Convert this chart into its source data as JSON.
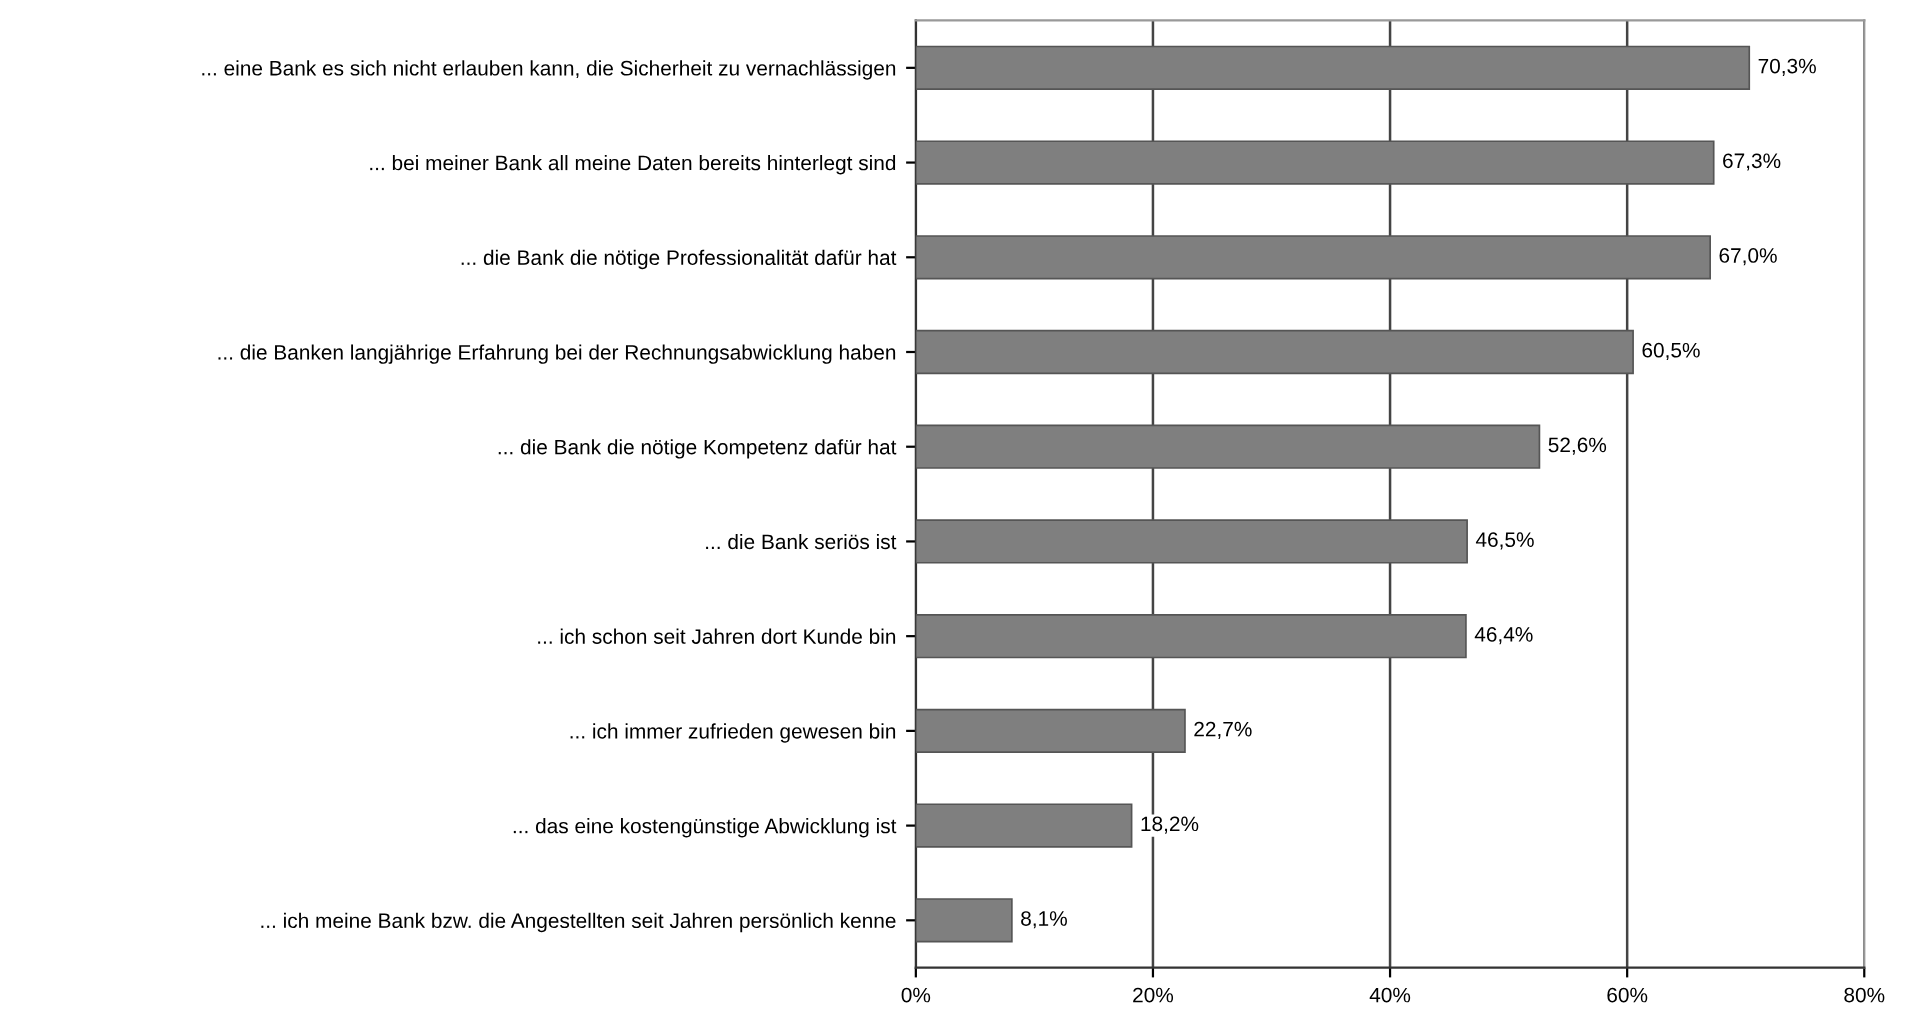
{
  "chart_data": {
    "type": "bar",
    "orientation": "horizontal",
    "categories": [
      "... eine Bank es sich nicht erlauben kann, die Sicherheit zu vernachlässigen",
      "... bei meiner Bank all meine Daten bereits hinterlegt sind",
      "... die Bank die nötige Professionalität dafür hat",
      "... die Banken langjährige Erfahrung bei der Rechnungsabwicklung haben",
      "... die Bank die nötige Kompetenz dafür hat",
      "... die Bank seriös ist",
      "... ich schon seit Jahren dort Kunde bin",
      "... ich immer zufrieden gewesen bin",
      "... das eine kostengünstige Abwicklung ist",
      "... ich meine Bank bzw. die Angestellten seit Jahren persönlich kenne"
    ],
    "values": [
      70.3,
      67.3,
      67.0,
      60.5,
      52.6,
      46.5,
      46.4,
      22.7,
      18.2,
      8.1
    ],
    "value_labels": [
      "70,3%",
      "67,3%",
      "67,0%",
      "60,5%",
      "52,6%",
      "46,5%",
      "46,4%",
      "22,7%",
      "18,2%",
      "8,1%"
    ],
    "color": "#7f7f7f",
    "xlim": [
      0,
      80
    ],
    "xticks": [
      {
        "value": 0,
        "label": "0%"
      },
      {
        "value": 20,
        "label": "20%"
      },
      {
        "value": 40,
        "label": "40%"
      },
      {
        "value": 60,
        "label": "60%"
      },
      {
        "value": 80,
        "label": "80%"
      }
    ],
    "grid": "x",
    "legend": false
  }
}
